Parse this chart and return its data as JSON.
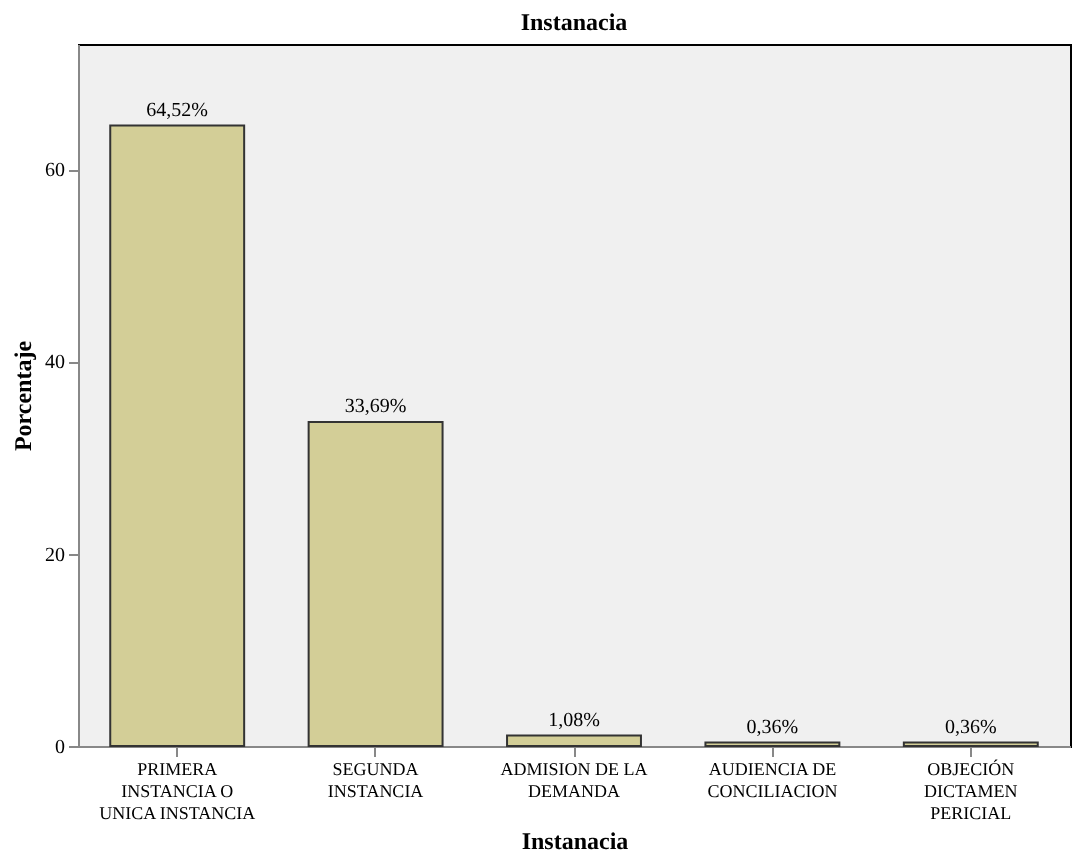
{
  "chart_data": {
    "type": "bar",
    "title": "Instanacia",
    "xlabel": "Instanacia",
    "ylabel": "Porcentaje",
    "categories": [
      "PRIMERA INSTANCIA O UNICA INSTANCIA",
      "SEGUNDA INSTANCIA",
      "ADMISION DE LA DEMANDA",
      "AUDIENCIA DE CONCILIACION",
      "OBJECIÓN DICTAMEN PERICIAL"
    ],
    "values": [
      64.52,
      33.69,
      1.08,
      0.36,
      0.36
    ],
    "value_labels": [
      "64,52%",
      "33,69%",
      "1,08%",
      "0,36%",
      "0,36%"
    ],
    "color": "#d3ce97",
    "ylim": [
      0,
      73
    ],
    "yticks": [
      0,
      20,
      40,
      60
    ],
    "grid": false
  }
}
